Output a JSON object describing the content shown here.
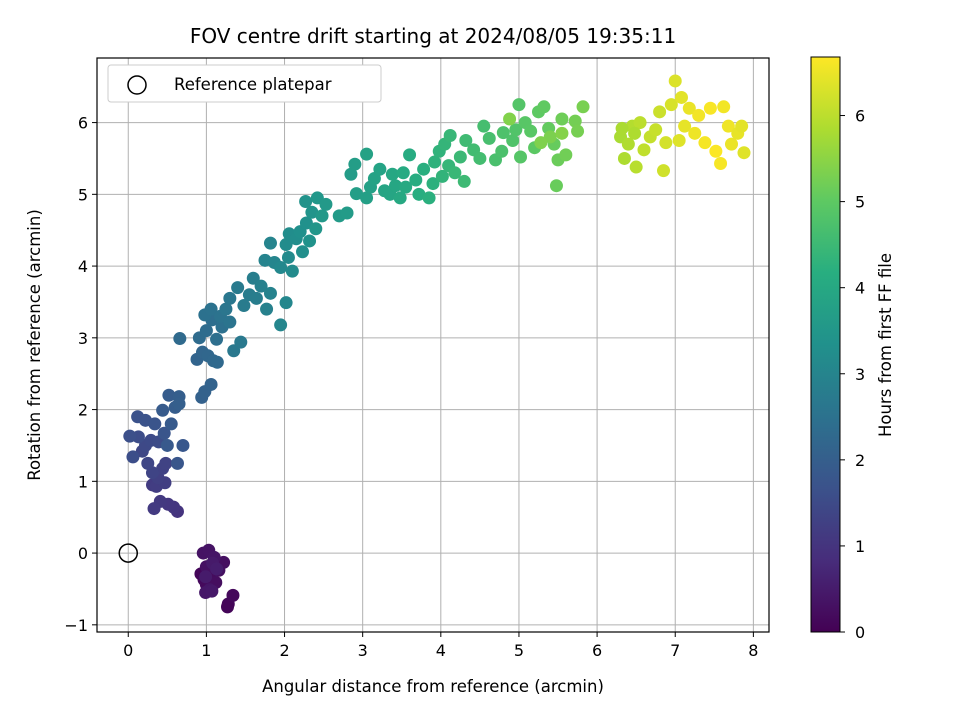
{
  "chart_data": {
    "type": "scatter",
    "title": "FOV centre drift starting at 2024/08/05 19:35:11",
    "xlabel": "Angular distance from reference (arcmin)",
    "ylabel": "Rotation from reference (arcmin)",
    "xlim": [
      -0.4,
      8.2
    ],
    "ylim": [
      -1.1,
      6.9
    ],
    "xticks": [
      "0",
      "1",
      "2",
      "3",
      "4",
      "5",
      "6",
      "7",
      "8"
    ],
    "yticks": [
      "−1",
      "0",
      "1",
      "2",
      "3",
      "4",
      "5",
      "6"
    ],
    "grid": true,
    "legend": {
      "position": "top-left",
      "entries": [
        "Reference platepar"
      ]
    },
    "reference_point": {
      "x": 0,
      "y": 0
    },
    "colorbar": {
      "label": "Hours from first FF file",
      "range": [
        0,
        6.68
      ],
      "ticks": [
        "0",
        "1",
        "2",
        "3",
        "4",
        "5",
        "6"
      ],
      "colormap": "viridis"
    },
    "series": [
      {
        "color_by": "hours",
        "points": [
          {
            "x": 0.93,
            "y": -0.29,
            "c": 0.1
          },
          {
            "x": 0.97,
            "y": -0.37,
            "c": 0.14
          },
          {
            "x": 1.0,
            "y": -0.44,
            "c": 0.18
          },
          {
            "x": 1.05,
            "y": -0.31,
            "c": 0.2
          },
          {
            "x": 1.12,
            "y": -0.41,
            "c": 0.24
          },
          {
            "x": 1.22,
            "y": -0.13,
            "c": 0.26
          },
          {
            "x": 1.16,
            "y": -0.24,
            "c": 0.28
          },
          {
            "x": 1.0,
            "y": -0.19,
            "c": 0.3
          },
          {
            "x": 0.96,
            "y": 0.0,
            "c": 0.33
          },
          {
            "x": 1.03,
            "y": 0.04,
            "c": 0.35
          },
          {
            "x": 1.1,
            "y": -0.06,
            "c": 0.38
          },
          {
            "x": 1.04,
            "y": -0.51,
            "c": 0.4
          },
          {
            "x": 1.28,
            "y": -0.71,
            "c": 0.12
          },
          {
            "x": 1.34,
            "y": -0.59,
            "c": 0.16
          },
          {
            "x": 1.27,
            "y": -0.75,
            "c": 0.08
          },
          {
            "x": 0.99,
            "y": -0.55,
            "c": 0.42
          },
          {
            "x": 1.07,
            "y": -0.53,
            "c": 0.44
          },
          {
            "x": 1.08,
            "y": -0.14,
            "c": 0.47
          },
          {
            "x": 0.99,
            "y": -0.33,
            "c": 0.5
          },
          {
            "x": 1.13,
            "y": -0.22,
            "c": 0.53
          },
          {
            "x": 0.63,
            "y": 0.58,
            "c": 1.0
          },
          {
            "x": 0.58,
            "y": 0.64,
            "c": 1.04
          },
          {
            "x": 0.51,
            "y": 0.68,
            "c": 1.07
          },
          {
            "x": 0.41,
            "y": 0.72,
            "c": 1.1
          },
          {
            "x": 0.33,
            "y": 0.62,
            "c": 1.13
          },
          {
            "x": 0.31,
            "y": 0.95,
            "c": 1.16
          },
          {
            "x": 0.36,
            "y": 0.93,
            "c": 1.19
          },
          {
            "x": 0.47,
            "y": 0.98,
            "c": 1.22
          },
          {
            "x": 0.38,
            "y": 1.05,
            "c": 1.26
          },
          {
            "x": 0.44,
            "y": 1.18,
            "c": 1.3
          },
          {
            "x": 0.48,
            "y": 1.25,
            "c": 1.33
          },
          {
            "x": 0.31,
            "y": 1.12,
            "c": 1.36
          },
          {
            "x": 0.25,
            "y": 1.25,
            "c": 1.39
          },
          {
            "x": 0.18,
            "y": 1.42,
            "c": 1.42
          },
          {
            "x": 0.22,
            "y": 1.5,
            "c": 1.46
          },
          {
            "x": 0.29,
            "y": 1.57,
            "c": 1.5
          },
          {
            "x": 0.39,
            "y": 1.55,
            "c": 1.53
          },
          {
            "x": 0.13,
            "y": 1.62,
            "c": 1.56
          },
          {
            "x": 0.06,
            "y": 1.34,
            "c": 1.59
          },
          {
            "x": 0.02,
            "y": 1.63,
            "c": 1.62
          },
          {
            "x": 0.12,
            "y": 1.9,
            "c": 1.66
          },
          {
            "x": 0.22,
            "y": 1.85,
            "c": 1.69
          },
          {
            "x": 0.34,
            "y": 1.8,
            "c": 1.72
          },
          {
            "x": 0.46,
            "y": 1.67,
            "c": 1.75
          },
          {
            "x": 0.63,
            "y": 1.25,
            "c": 1.78
          },
          {
            "x": 0.7,
            "y": 1.5,
            "c": 1.81
          },
          {
            "x": 0.5,
            "y": 1.5,
            "c": 1.84
          },
          {
            "x": 0.55,
            "y": 1.8,
            "c": 1.87
          },
          {
            "x": 0.44,
            "y": 1.99,
            "c": 1.9
          },
          {
            "x": 0.52,
            "y": 2.2,
            "c": 1.93
          },
          {
            "x": 0.6,
            "y": 2.03,
            "c": 1.96
          },
          {
            "x": 0.65,
            "y": 2.18,
            "c": 1.99
          },
          {
            "x": 0.65,
            "y": 2.08,
            "c": 2.02
          },
          {
            "x": 0.94,
            "y": 2.17,
            "c": 2.05
          },
          {
            "x": 0.98,
            "y": 2.25,
            "c": 2.08
          },
          {
            "x": 1.06,
            "y": 2.35,
            "c": 2.11
          },
          {
            "x": 0.88,
            "y": 2.7,
            "c": 2.15
          },
          {
            "x": 0.95,
            "y": 2.8,
            "c": 2.18
          },
          {
            "x": 1.02,
            "y": 2.75,
            "c": 2.21
          },
          {
            "x": 1.09,
            "y": 2.68,
            "c": 2.24
          },
          {
            "x": 1.14,
            "y": 2.66,
            "c": 2.27
          },
          {
            "x": 0.66,
            "y": 2.99,
            "c": 2.3
          },
          {
            "x": 0.91,
            "y": 3.0,
            "c": 2.33
          },
          {
            "x": 1.0,
            "y": 3.1,
            "c": 2.36
          },
          {
            "x": 1.07,
            "y": 3.25,
            "c": 2.39
          },
          {
            "x": 1.13,
            "y": 2.98,
            "c": 2.42
          },
          {
            "x": 1.2,
            "y": 3.15,
            "c": 2.45
          },
          {
            "x": 0.98,
            "y": 3.32,
            "c": 2.48
          },
          {
            "x": 1.06,
            "y": 3.4,
            "c": 2.51
          },
          {
            "x": 1.18,
            "y": 3.3,
            "c": 2.54
          },
          {
            "x": 1.3,
            "y": 3.22,
            "c": 2.57
          },
          {
            "x": 1.25,
            "y": 3.4,
            "c": 2.6
          },
          {
            "x": 1.3,
            "y": 3.55,
            "c": 2.63
          },
          {
            "x": 1.35,
            "y": 2.82,
            "c": 2.66
          },
          {
            "x": 1.44,
            "y": 2.94,
            "c": 2.69
          },
          {
            "x": 1.4,
            "y": 3.7,
            "c": 2.72
          },
          {
            "x": 1.48,
            "y": 3.45,
            "c": 2.75
          },
          {
            "x": 1.55,
            "y": 3.6,
            "c": 2.78
          },
          {
            "x": 1.64,
            "y": 3.55,
            "c": 2.81
          },
          {
            "x": 1.6,
            "y": 3.83,
            "c": 2.84
          },
          {
            "x": 1.7,
            "y": 3.72,
            "c": 2.87
          },
          {
            "x": 1.77,
            "y": 3.4,
            "c": 2.9
          },
          {
            "x": 1.82,
            "y": 3.62,
            "c": 2.93
          },
          {
            "x": 1.75,
            "y": 4.08,
            "c": 2.96
          },
          {
            "x": 1.82,
            "y": 4.32,
            "c": 2.99
          },
          {
            "x": 1.87,
            "y": 4.05,
            "c": 3.02
          },
          {
            "x": 1.95,
            "y": 3.18,
            "c": 3.05
          },
          {
            "x": 2.02,
            "y": 3.49,
            "c": 3.08
          },
          {
            "x": 1.95,
            "y": 3.98,
            "c": 3.11
          },
          {
            "x": 2.05,
            "y": 4.12,
            "c": 3.14
          },
          {
            "x": 2.1,
            "y": 3.93,
            "c": 3.17
          },
          {
            "x": 2.02,
            "y": 4.3,
            "c": 3.2
          },
          {
            "x": 2.06,
            "y": 4.45,
            "c": 3.23
          },
          {
            "x": 2.15,
            "y": 4.38,
            "c": 3.26
          },
          {
            "x": 2.23,
            "y": 4.2,
            "c": 3.29
          },
          {
            "x": 2.2,
            "y": 4.48,
            "c": 3.32
          },
          {
            "x": 2.28,
            "y": 4.6,
            "c": 3.35
          },
          {
            "x": 2.32,
            "y": 4.35,
            "c": 3.38
          },
          {
            "x": 2.27,
            "y": 4.9,
            "c": 3.41
          },
          {
            "x": 2.35,
            "y": 4.75,
            "c": 3.44
          },
          {
            "x": 2.4,
            "y": 4.52,
            "c": 3.47
          },
          {
            "x": 2.42,
            "y": 4.95,
            "c": 3.5
          },
          {
            "x": 2.48,
            "y": 4.7,
            "c": 3.53
          },
          {
            "x": 2.53,
            "y": 4.86,
            "c": 3.56
          },
          {
            "x": 2.7,
            "y": 4.7,
            "c": 3.59
          },
          {
            "x": 2.8,
            "y": 4.74,
            "c": 3.62
          },
          {
            "x": 2.85,
            "y": 5.28,
            "c": 3.65
          },
          {
            "x": 2.9,
            "y": 5.42,
            "c": 3.68
          },
          {
            "x": 2.92,
            "y": 5.01,
            "c": 3.71
          },
          {
            "x": 3.05,
            "y": 4.95,
            "c": 3.74
          },
          {
            "x": 3.1,
            "y": 5.1,
            "c": 3.77
          },
          {
            "x": 3.05,
            "y": 5.56,
            "c": 3.8
          },
          {
            "x": 3.15,
            "y": 5.22,
            "c": 3.83
          },
          {
            "x": 3.22,
            "y": 5.35,
            "c": 3.86
          },
          {
            "x": 3.28,
            "y": 5.05,
            "c": 3.89
          },
          {
            "x": 3.35,
            "y": 5.0,
            "c": 3.92
          },
          {
            "x": 3.42,
            "y": 5.12,
            "c": 3.95
          },
          {
            "x": 3.38,
            "y": 5.28,
            "c": 3.98
          },
          {
            "x": 3.48,
            "y": 4.95,
            "c": 4.01
          },
          {
            "x": 3.55,
            "y": 5.1,
            "c": 4.04
          },
          {
            "x": 3.52,
            "y": 5.3,
            "c": 4.07
          },
          {
            "x": 3.6,
            "y": 5.55,
            "c": 4.1
          },
          {
            "x": 3.68,
            "y": 5.2,
            "c": 4.13
          },
          {
            "x": 3.72,
            "y": 5.0,
            "c": 4.16
          },
          {
            "x": 3.78,
            "y": 5.35,
            "c": 4.19
          },
          {
            "x": 3.85,
            "y": 4.95,
            "c": 4.22
          },
          {
            "x": 3.9,
            "y": 5.15,
            "c": 4.25
          },
          {
            "x": 3.92,
            "y": 5.45,
            "c": 4.28
          },
          {
            "x": 3.98,
            "y": 5.6,
            "c": 4.31
          },
          {
            "x": 4.02,
            "y": 5.25,
            "c": 4.34
          },
          {
            "x": 4.05,
            "y": 5.7,
            "c": 4.37
          },
          {
            "x": 4.1,
            "y": 5.4,
            "c": 4.4
          },
          {
            "x": 4.12,
            "y": 5.82,
            "c": 4.43
          },
          {
            "x": 4.18,
            "y": 5.3,
            "c": 4.46
          },
          {
            "x": 4.25,
            "y": 5.52,
            "c": 4.49
          },
          {
            "x": 4.3,
            "y": 5.18,
            "c": 4.52
          },
          {
            "x": 4.32,
            "y": 5.75,
            "c": 4.55
          },
          {
            "x": 4.42,
            "y": 5.62,
            "c": 4.58
          },
          {
            "x": 4.5,
            "y": 5.5,
            "c": 4.61
          },
          {
            "x": 4.55,
            "y": 5.95,
            "c": 4.64
          },
          {
            "x": 4.62,
            "y": 5.78,
            "c": 4.67
          },
          {
            "x": 4.7,
            "y": 5.48,
            "c": 4.7
          },
          {
            "x": 4.78,
            "y": 5.6,
            "c": 4.73
          },
          {
            "x": 4.8,
            "y": 5.86,
            "c": 4.76
          },
          {
            "x": 4.92,
            "y": 5.75,
            "c": 4.79
          },
          {
            "x": 4.96,
            "y": 5.9,
            "c": 4.82
          },
          {
            "x": 5.0,
            "y": 6.25,
            "c": 4.85
          },
          {
            "x": 5.02,
            "y": 5.52,
            "c": 4.88
          },
          {
            "x": 5.08,
            "y": 6.0,
            "c": 4.91
          },
          {
            "x": 5.15,
            "y": 5.88,
            "c": 4.94
          },
          {
            "x": 5.2,
            "y": 5.65,
            "c": 4.97
          },
          {
            "x": 5.25,
            "y": 6.15,
            "c": 5.0
          },
          {
            "x": 5.32,
            "y": 6.22,
            "c": 5.03
          },
          {
            "x": 5.38,
            "y": 5.92,
            "c": 5.06
          },
          {
            "x": 5.45,
            "y": 5.7,
            "c": 5.09
          },
          {
            "x": 5.48,
            "y": 5.12,
            "c": 5.12
          },
          {
            "x": 5.5,
            "y": 5.48,
            "c": 5.15
          },
          {
            "x": 5.55,
            "y": 6.05,
            "c": 5.18
          },
          {
            "x": 5.6,
            "y": 5.55,
            "c": 5.21
          },
          {
            "x": 5.72,
            "y": 6.02,
            "c": 5.24
          },
          {
            "x": 5.75,
            "y": 5.88,
            "c": 5.27
          },
          {
            "x": 5.82,
            "y": 6.22,
            "c": 5.3
          },
          {
            "x": 5.4,
            "y": 5.8,
            "c": 5.33
          },
          {
            "x": 5.28,
            "y": 5.72,
            "c": 5.36
          },
          {
            "x": 4.88,
            "y": 6.05,
            "c": 5.39
          },
          {
            "x": 5.55,
            "y": 5.85,
            "c": 5.42
          },
          {
            "x": 6.3,
            "y": 5.8,
            "c": 5.8
          },
          {
            "x": 6.35,
            "y": 5.5,
            "c": 5.84
          },
          {
            "x": 6.4,
            "y": 5.7,
            "c": 5.88
          },
          {
            "x": 6.45,
            "y": 5.95,
            "c": 5.92
          },
          {
            "x": 6.5,
            "y": 5.38,
            "c": 5.96
          },
          {
            "x": 6.55,
            "y": 6.0,
            "c": 6.0
          },
          {
            "x": 6.6,
            "y": 5.62,
            "c": 6.04
          },
          {
            "x": 6.68,
            "y": 5.8,
            "c": 6.08
          },
          {
            "x": 6.75,
            "y": 5.9,
            "c": 6.12
          },
          {
            "x": 6.8,
            "y": 6.15,
            "c": 6.16
          },
          {
            "x": 6.85,
            "y": 5.33,
            "c": 6.2
          },
          {
            "x": 6.88,
            "y": 5.72,
            "c": 6.24
          },
          {
            "x": 6.95,
            "y": 6.25,
            "c": 6.28
          },
          {
            "x": 7.0,
            "y": 6.58,
            "c": 6.32
          },
          {
            "x": 7.05,
            "y": 5.75,
            "c": 6.36
          },
          {
            "x": 7.08,
            "y": 6.35,
            "c": 6.4
          },
          {
            "x": 7.12,
            "y": 5.95,
            "c": 6.44
          },
          {
            "x": 7.18,
            "y": 6.2,
            "c": 6.48
          },
          {
            "x": 7.25,
            "y": 5.85,
            "c": 6.52
          },
          {
            "x": 7.3,
            "y": 6.1,
            "c": 6.56
          },
          {
            "x": 7.38,
            "y": 5.72,
            "c": 6.6
          },
          {
            "x": 7.45,
            "y": 6.2,
            "c": 6.63
          },
          {
            "x": 7.52,
            "y": 5.6,
            "c": 6.66
          },
          {
            "x": 7.58,
            "y": 5.43,
            "c": 6.61
          },
          {
            "x": 7.62,
            "y": 6.22,
            "c": 6.57
          },
          {
            "x": 7.68,
            "y": 5.95,
            "c": 6.53
          },
          {
            "x": 7.72,
            "y": 5.7,
            "c": 6.49
          },
          {
            "x": 7.8,
            "y": 5.85,
            "c": 6.45
          },
          {
            "x": 7.85,
            "y": 5.95,
            "c": 6.41
          },
          {
            "x": 7.88,
            "y": 5.58,
            "c": 6.37
          },
          {
            "x": 6.32,
            "y": 5.92,
            "c": 5.82
          },
          {
            "x": 6.48,
            "y": 5.85,
            "c": 5.86
          }
        ]
      }
    ]
  }
}
